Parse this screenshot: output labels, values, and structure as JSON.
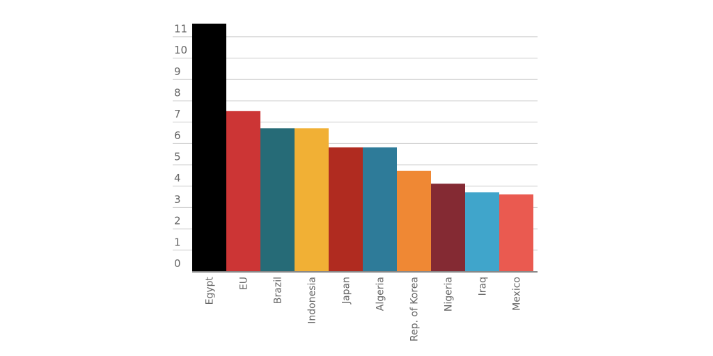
{
  "chart_data": {
    "type": "bar",
    "title": "",
    "xlabel": "",
    "ylabel": "",
    "categories": [
      "Egypt",
      "EU",
      "Brazil",
      "Indonesia",
      "Japan",
      "Algeria",
      "Rep. of Korea",
      "Nigeria",
      "Iraq",
      "Mexico"
    ],
    "values": [
      11.6,
      7.5,
      6.7,
      6.7,
      5.8,
      5.8,
      4.7,
      4.1,
      3.7,
      3.6
    ],
    "colors": [
      "#000000",
      "#cc3535",
      "#266b77",
      "#f1b035",
      "#b02b20",
      "#2e7b99",
      "#ef8834",
      "#842a33",
      "#40a5cb",
      "#ea5a50"
    ],
    "ylim": [
      0,
      11.6
    ],
    "yticks": [
      0,
      1,
      2,
      3,
      4,
      5,
      6,
      7,
      8,
      9,
      10,
      11
    ],
    "grid": true,
    "legend": "none"
  }
}
